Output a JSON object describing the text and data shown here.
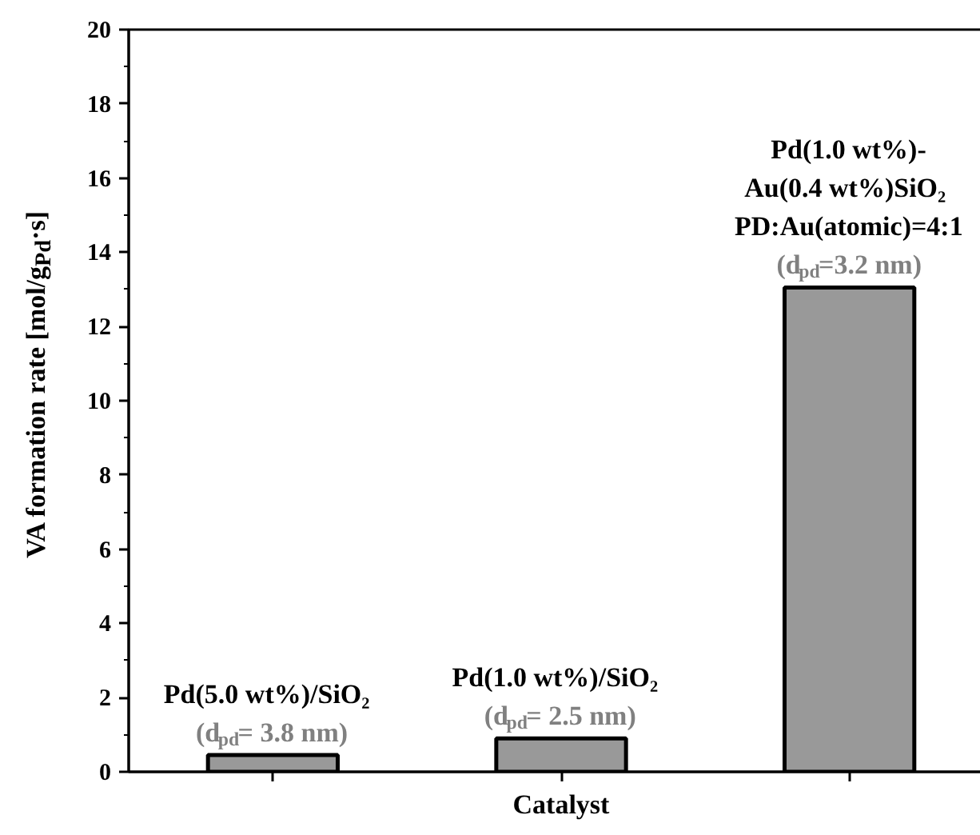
{
  "chart_data": {
    "type": "bar",
    "xlabel": "Catalyst",
    "ylabel": "VA formation rate [mol/g$_{Pd}$·s]",
    "categories": [
      null,
      null,
      null
    ],
    "values": [
      0.45,
      0.9,
      13.05
    ],
    "color": "#999999",
    "ylim": [
      0,
      20
    ],
    "yticks": [
      0,
      2,
      4,
      6,
      8,
      10,
      12,
      14,
      16,
      18,
      20
    ],
    "tick_labels": "y",
    "grid": false,
    "annotations": [
      {
        "text": "Pd(5.0 wt%)/SiO₂\n(d$_{pd}$= 3.8 nm)"
      },
      {
        "text": "Pd(1.0 wt%)/SiO₂\n(d$_{pd}$= 2.5 nm)"
      },
      {
        "text": "Pd(1.0 wt%)-\nAu(0.4 wt%)SiO₂\nPD:Au(atomic)=4:1\n(d$_{pd}$=3.2 nm)"
      }
    ]
  }
}
